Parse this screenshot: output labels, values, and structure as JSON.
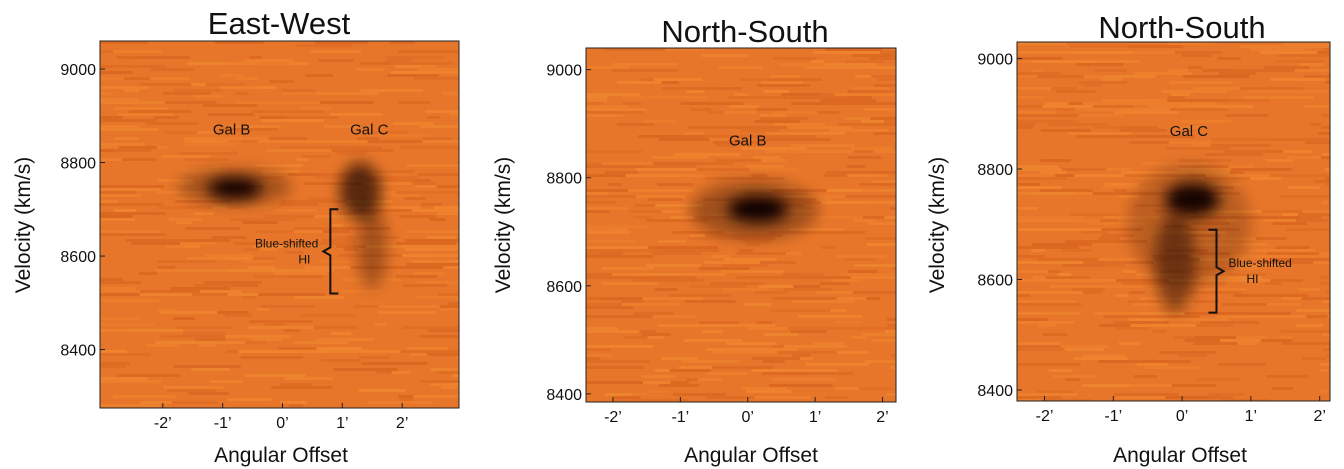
{
  "figure": {
    "panels": [
      {
        "title": "East-West",
        "xlabel": "Angular Offset",
        "ylabel": "Velocity (km/s)",
        "annotations": [
          {
            "text": "Gal B",
            "x": -0.85,
            "y": 8860
          },
          {
            "text": "Gal C",
            "x": 1.45,
            "y": 8860
          }
        ],
        "bracket": {
          "label_line1": "Blue-shifted",
          "label_line2": "HI",
          "x": 0.8,
          "y_range": [
            8520,
            8700
          ]
        }
      },
      {
        "title": "North-South",
        "xlabel": "Angular Offset",
        "ylabel": "Velocity (km/s)",
        "annotations": [
          {
            "text": "Gal B",
            "x": 0.0,
            "y": 8860
          }
        ]
      },
      {
        "title": "North-South",
        "xlabel": "Angular Offset",
        "ylabel": "Velocity (km/s)",
        "annotations": [
          {
            "text": "Gal C",
            "x": 0.1,
            "y": 8860
          }
        ],
        "bracket": {
          "label_line1": "Blue-shifted",
          "label_line2": "HI",
          "x": 0.5,
          "y_range": [
            8540,
            8690
          ]
        }
      }
    ],
    "colors": {
      "background": "#e8762a",
      "stripe_light": "#f0862f",
      "stripe_dark": "#d8641f",
      "emission": "#0d0602"
    }
  },
  "chart_data": [
    {
      "type": "heatmap",
      "title": "East-West",
      "xlabel": "Angular Offset",
      "ylabel": "Velocity (km/s)",
      "xlim": [
        -3.05,
        2.95
      ],
      "ylim": [
        8275,
        9060
      ],
      "xticks": [
        -2,
        -1,
        0,
        1,
        2
      ],
      "xtick_labels": [
        "-2’",
        "-1’",
        "0’",
        "1’",
        "2’"
      ],
      "yticks": [
        8400,
        8600,
        8800,
        9000
      ],
      "ytick_labels": [
        "8400",
        "8600",
        "8800",
        "9000"
      ],
      "sources": [
        {
          "name": "Gal B",
          "x": -0.8,
          "y": 8745,
          "sx": 0.45,
          "sy": 22,
          "amp": 1.0
        },
        {
          "name": "Gal B halo",
          "x": -0.8,
          "y": 8748,
          "sx": 0.95,
          "sy": 40,
          "amp": 0.3
        },
        {
          "name": "Gal C",
          "x": 1.3,
          "y": 8740,
          "sx": 0.35,
          "sy": 60,
          "amp": 0.65
        },
        {
          "name": "Gal C tail",
          "x": 1.5,
          "y": 8620,
          "sx": 0.25,
          "sy": 90,
          "amp": 0.3
        }
      ]
    },
    {
      "type": "heatmap",
      "title": "North-South",
      "xlabel": "Angular Offset",
      "ylabel": "Velocity (km/s)",
      "xlim": [
        -2.4,
        2.2
      ],
      "ylim": [
        8385,
        9040
      ],
      "xticks": [
        -2,
        -1,
        0,
        1,
        2
      ],
      "xtick_labels": [
        "-2’",
        "-1’",
        "0’",
        "1’",
        "2’"
      ],
      "yticks": [
        8400,
        8600,
        8800,
        9000
      ],
      "ytick_labels": [
        "8400",
        "8600",
        "8800",
        "9000"
      ],
      "sources": [
        {
          "name": "Gal B",
          "x": 0.15,
          "y": 8742,
          "sx": 0.45,
          "sy": 24,
          "amp": 1.0
        },
        {
          "name": "Gal B halo",
          "x": 0.1,
          "y": 8740,
          "sx": 0.95,
          "sy": 55,
          "amp": 0.32
        }
      ]
    },
    {
      "type": "heatmap",
      "title": "North-South",
      "xlabel": "Angular Offset",
      "ylabel": "Velocity (km/s)",
      "xlim": [
        -2.4,
        2.15
      ],
      "ylim": [
        8380,
        9030
      ],
      "xticks": [
        -2,
        -1,
        0,
        1,
        2
      ],
      "xtick_labels": [
        "-2’",
        "-1’",
        "0’",
        "1’",
        "2’"
      ],
      "yticks": [
        8400,
        8600,
        8800,
        9000
      ],
      "ytick_labels": [
        "8400",
        "8600",
        "8800",
        "9000"
      ],
      "sources": [
        {
          "name": "Gal C",
          "x": 0.15,
          "y": 8745,
          "sx": 0.4,
          "sy": 30,
          "amp": 0.95
        },
        {
          "name": "Gal C stem",
          "x": -0.1,
          "y": 8630,
          "sx": 0.3,
          "sy": 90,
          "amp": 0.45
        },
        {
          "name": "Gal C halo",
          "x": 0.1,
          "y": 8700,
          "sx": 0.9,
          "sy": 110,
          "amp": 0.2
        }
      ]
    }
  ]
}
